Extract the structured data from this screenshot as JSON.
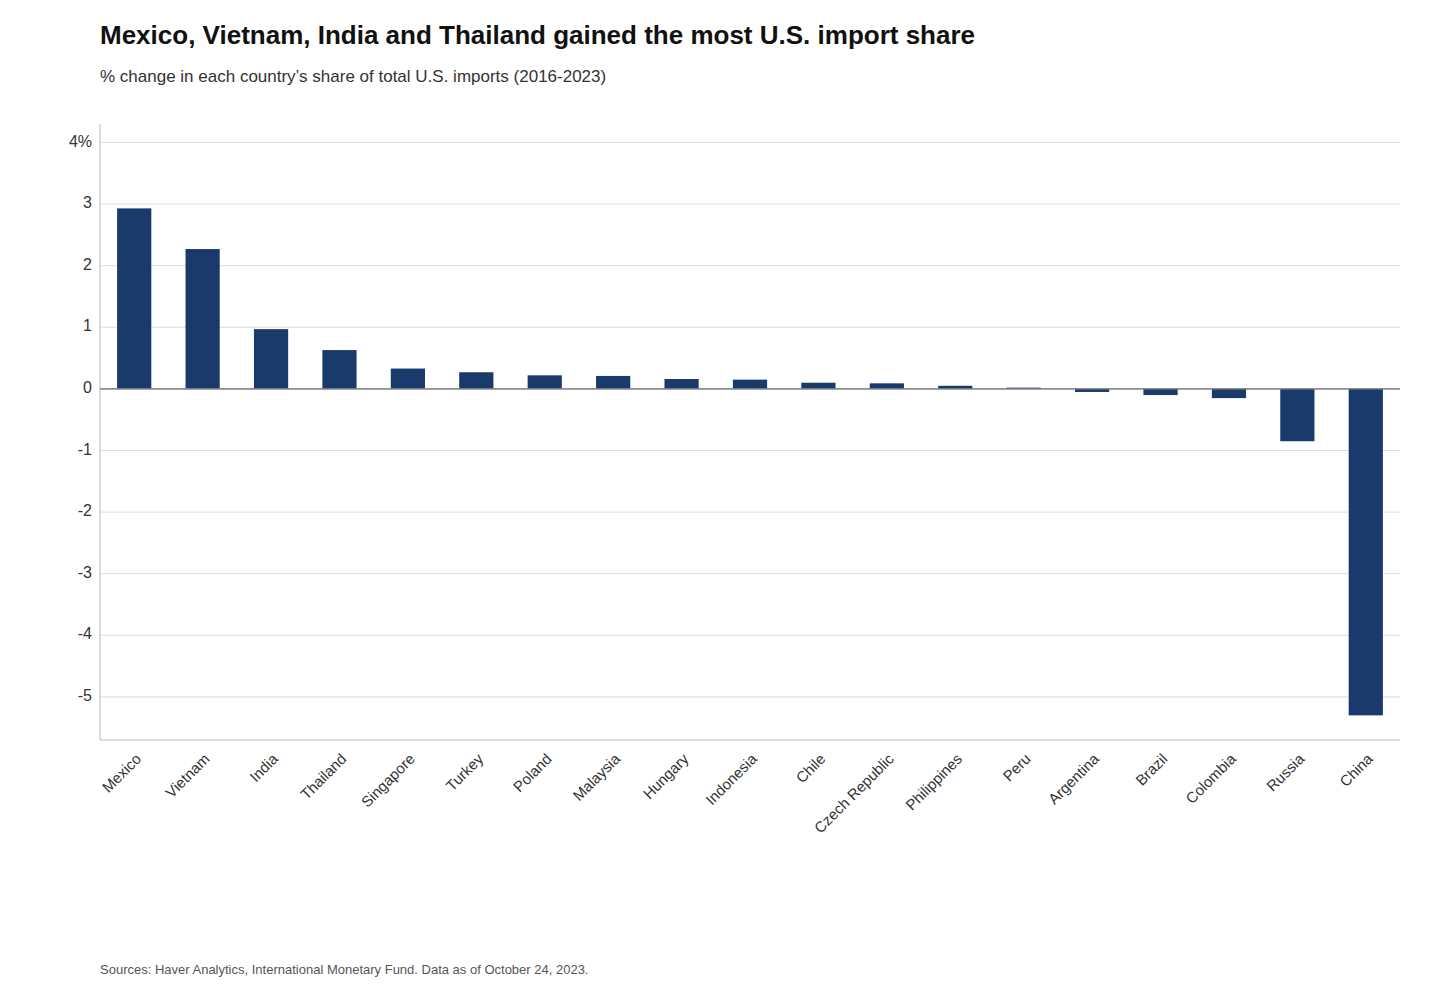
{
  "chart_data": {
    "type": "bar",
    "title": "Mexico, Vietnam, India and Thailand gained the most U.S. import share",
    "subtitle": "% change in each country’s share of total U.S. imports (2016-2023)",
    "footnote": "Sources: Haver Analytics, International Monetary Fund. Data as of October 24, 2023.",
    "categories": [
      "Mexico",
      "Vietnam",
      "India",
      "Thailand",
      "Singapore",
      "Turkey",
      "Poland",
      "Malaysia",
      "Hungary",
      "Indonesia",
      "Chile",
      "Czech Republic",
      "Philippines",
      "Peru",
      "Argentina",
      "Brazil",
      "Colombia",
      "Russia",
      "China"
    ],
    "values": [
      2.93,
      2.27,
      0.97,
      0.63,
      0.33,
      0.27,
      0.22,
      0.21,
      0.16,
      0.15,
      0.1,
      0.09,
      0.05,
      0.02,
      -0.05,
      -0.1,
      -0.15,
      -0.85,
      -5.3
    ],
    "color": "#1a3a6b",
    "ylim": [
      -5.7,
      4.3
    ],
    "yticks": [
      -5,
      -4,
      -3,
      -2,
      -1,
      0,
      1,
      2,
      3,
      {
        "value": 4,
        "label": "4%"
      }
    ],
    "grid": true
  }
}
